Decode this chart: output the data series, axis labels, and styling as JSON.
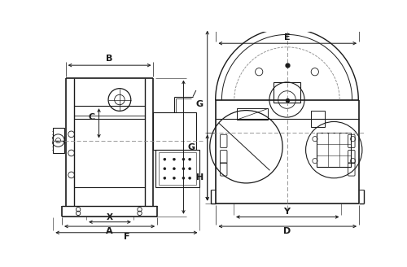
{
  "bg_color": "#ffffff",
  "line_color": "#1a1a1a",
  "dim_color": "#1a1a1a",
  "dash_color": "#888888",
  "fig_width": 5.0,
  "fig_height": 3.28,
  "dpi": 100,
  "labels": {
    "B": "B",
    "C": "C",
    "A": "A",
    "F": "F",
    "X": "X",
    "E": "E",
    "D": "D",
    "Y": "Y",
    "G": "G",
    "H": "H"
  }
}
